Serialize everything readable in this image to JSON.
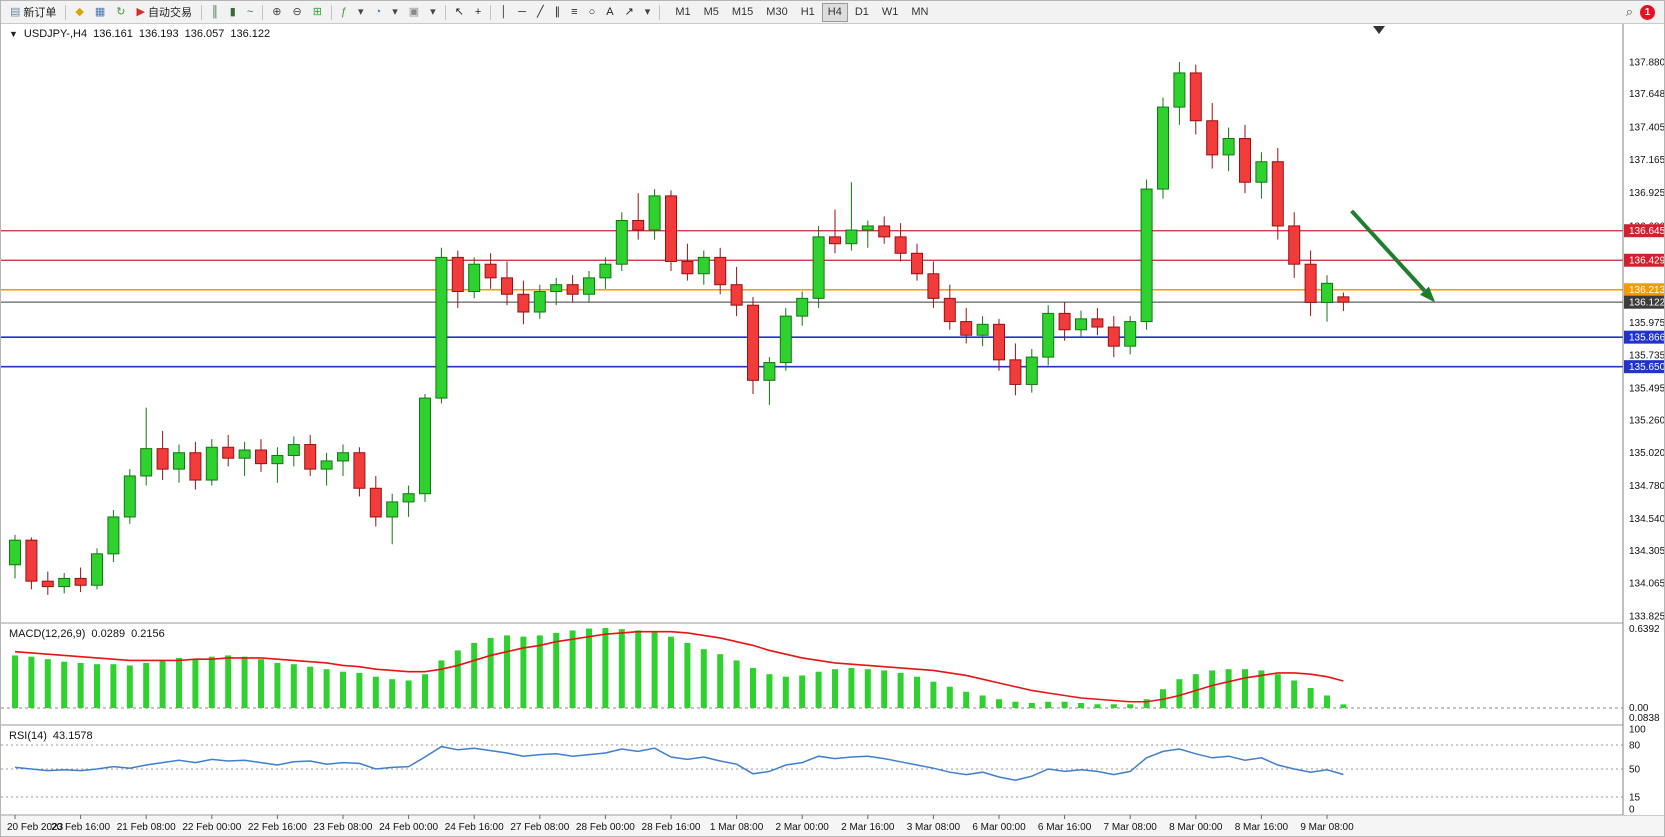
{
  "toolbar": {
    "items": [
      {
        "type": "button",
        "name": "new-order-button",
        "glyph": "▤",
        "glyph_color": "#6a88a8",
        "label": "新订单"
      },
      {
        "type": "sep"
      },
      {
        "type": "icon",
        "name": "charts-icon",
        "glyph": "◆",
        "color": "#d9a300"
      },
      {
        "type": "icon",
        "name": "market-watch-icon",
        "glyph": "▦",
        "color": "#4a78b5"
      },
      {
        "type": "icon",
        "name": "refresh-icon",
        "glyph": "↻",
        "color": "#3a9e3a"
      },
      {
        "type": "button",
        "name": "auto-trading-button",
        "glyph": "▶",
        "glyph_color": "#d03030",
        "label": "自动交易"
      },
      {
        "type": "sep"
      },
      {
        "type": "icon",
        "name": "bar-chart-icon",
        "glyph": "║",
        "color": "#356a35"
      },
      {
        "type": "icon",
        "name": "candlestick-chart-icon",
        "glyph": "▮",
        "color": "#356a35"
      },
      {
        "type": "icon",
        "name": "line-chart-icon",
        "glyph": "~",
        "color": "#356a35"
      },
      {
        "type": "sep"
      },
      {
        "type": "icon",
        "name": "zoom-in-icon",
        "glyph": "⊕",
        "color": "#444444"
      },
      {
        "type": "icon",
        "name": "zoom-out-icon",
        "glyph": "⊖",
        "color": "#444444"
      },
      {
        "type": "icon",
        "name": "tile-windows-icon",
        "glyph": "⊞",
        "color": "#3a9e3a"
      },
      {
        "type": "sep"
      },
      {
        "type": "icon",
        "name": "indicators-icon",
        "glyph": "ƒ",
        "color": "#3a9e3a"
      },
      {
        "type": "icon",
        "name": "indicators-dropdown-icon",
        "glyph": "▾",
        "color": "#444444"
      },
      {
        "type": "icon",
        "name": "period-icon",
        "glyph": "◔",
        "color": "#4a78b5"
      },
      {
        "type": "icon",
        "name": "period-dropdown-icon",
        "glyph": "▾",
        "color": "#444444"
      },
      {
        "type": "icon",
        "name": "template-icon",
        "glyph": "▣",
        "color": "#888888"
      },
      {
        "type": "icon",
        "name": "template-dropdown-icon",
        "glyph": "▾",
        "color": "#444444"
      },
      {
        "type": "sep"
      },
      {
        "type": "icon",
        "name": "cursor-icon",
        "glyph": "↖",
        "color": "#222222"
      },
      {
        "type": "icon",
        "name": "crosshair-icon",
        "glyph": "+",
        "color": "#222222"
      },
      {
        "type": "sep"
      },
      {
        "type": "icon",
        "name": "vertical-line-icon",
        "glyph": "│",
        "color": "#222222"
      },
      {
        "type": "icon",
        "name": "horizontal-line-icon",
        "glyph": "─",
        "color": "#222222"
      },
      {
        "type": "icon",
        "name": "trendline-icon",
        "glyph": "╱",
        "color": "#222222"
      },
      {
        "type": "icon",
        "name": "channel-icon",
        "glyph": "∥",
        "color": "#222222"
      },
      {
        "type": "icon",
        "name": "fibonacci-icon",
        "glyph": "≡",
        "color": "#222222"
      },
      {
        "type": "icon",
        "name": "shapes-icon",
        "glyph": "○",
        "color": "#222222"
      },
      {
        "type": "icon",
        "name": "text-label-icon",
        "glyph": "A",
        "color": "#222222"
      },
      {
        "type": "icon",
        "name": "arrows-tool-icon",
        "glyph": "↗",
        "color": "#222222"
      },
      {
        "type": "icon",
        "name": "arrows-dropdown-icon",
        "glyph": "▾",
        "color": "#444444"
      },
      {
        "type": "sep"
      }
    ],
    "timeframes": [
      "M1",
      "M5",
      "M15",
      "M30",
      "H1",
      "H4",
      "D1",
      "W1",
      "MN"
    ],
    "active_timeframe": "H4",
    "right_items": [
      {
        "type": "icon",
        "name": "search-icon",
        "glyph": "⌕"
      },
      {
        "type": "badge",
        "name": "notification-badge",
        "label": "1",
        "color": "#e81123"
      }
    ]
  },
  "chart": {
    "expander_glyph": "▼",
    "symbol_label": "USDJPY-,H4",
    "open": "136.161",
    "high": "136.193",
    "low": "136.057",
    "close": "136.122"
  },
  "chart_data": {
    "type": "candlestick",
    "symbol": "USDJPY-",
    "timeframe": "H4",
    "colors": {
      "up": "#2fd12f",
      "up_border": "#117711",
      "down": "#f23b3b",
      "down_border": "#991111",
      "macd_hist": "#2fd12f",
      "macd_signal": "#e81313",
      "rsi_line": "#3f7fce",
      "background": "#ffffff"
    },
    "price_axis": {
      "labels": [
        {
          "text": "137.880",
          "value": 137.88
        },
        {
          "text": "137.648",
          "value": 137.648
        },
        {
          "text": "137.405",
          "value": 137.405
        },
        {
          "text": "137.165",
          "value": 137.165
        },
        {
          "text": "136.925",
          "value": 136.925
        },
        {
          "text": "136.680",
          "value": 136.68
        },
        {
          "text": "135.975",
          "value": 135.975
        },
        {
          "text": "135.735",
          "value": 135.735
        },
        {
          "text": "135.495",
          "value": 135.495
        },
        {
          "text": "135.260",
          "value": 135.26
        },
        {
          "text": "135.020",
          "value": 135.02
        },
        {
          "text": "134.780",
          "value": 134.78
        },
        {
          "text": "134.540",
          "value": 134.54
        },
        {
          "text": "134.305",
          "value": 134.305
        },
        {
          "text": "134.065",
          "value": 134.065
        },
        {
          "text": "133.825",
          "value": 133.825
        }
      ]
    },
    "hlines": [
      {
        "name": "resistance-line-1",
        "price": 136.645,
        "color": "#d32030",
        "width": 1.3,
        "label": "136.645"
      },
      {
        "name": "resistance-line-2",
        "price": 136.429,
        "color": "#d32030",
        "width": 1.3,
        "label": "136.429"
      },
      {
        "name": "pivot-line",
        "price": 136.213,
        "color": "#f59b00",
        "width": 1.6,
        "label": "136.213"
      },
      {
        "name": "bid-line",
        "price": 136.122,
        "color": "#3c3c3c",
        "width": 1,
        "label": "136.122"
      },
      {
        "name": "support-line-1",
        "price": 135.866,
        "color": "#2233cc",
        "width": 1.6,
        "label": "135.866"
      },
      {
        "name": "support-line-2",
        "price": 135.65,
        "color": "#2233cc",
        "width": 1.6,
        "label": "135.650"
      }
    ],
    "arrow": {
      "from_bar": 81.5,
      "from_price": 136.79,
      "to_bar": 86.6,
      "to_price": 136.12,
      "color": "#1e7e2e"
    },
    "time_labels": [
      "20 Feb 2023",
      "20 Feb 16:00",
      "21 Feb 08:00",
      "22 Feb 00:00",
      "22 Feb 16:00",
      "23 Feb 08:00",
      "24 Feb 00:00",
      "24 Feb 16:00",
      "27 Feb 08:00",
      "28 Feb 00:00",
      "28 Feb 16:00",
      "1 Mar 08:00",
      "2 Mar 00:00",
      "2 Mar 16:00",
      "3 Mar 08:00",
      "6 Mar 00:00",
      "6 Mar 16:00",
      "7 Mar 08:00",
      "8 Mar 00:00",
      "8 Mar 16:00",
      "9 Mar 08:00"
    ],
    "candles": [
      [
        134.2,
        134.42,
        134.1,
        134.38
      ],
      [
        134.38,
        134.4,
        134.02,
        134.08
      ],
      [
        134.08,
        134.15,
        133.98,
        134.04
      ],
      [
        134.04,
        134.14,
        133.99,
        134.1
      ],
      [
        134.1,
        134.18,
        134.0,
        134.05
      ],
      [
        134.05,
        134.32,
        134.02,
        134.28
      ],
      [
        134.28,
        134.6,
        134.22,
        134.55
      ],
      [
        134.55,
        134.9,
        134.5,
        134.85
      ],
      [
        134.85,
        135.35,
        134.78,
        135.05
      ],
      [
        135.05,
        135.18,
        134.82,
        134.9
      ],
      [
        134.9,
        135.08,
        134.8,
        135.02
      ],
      [
        135.02,
        135.1,
        134.75,
        134.82
      ],
      [
        134.82,
        135.12,
        134.78,
        135.06
      ],
      [
        135.06,
        135.15,
        134.92,
        134.98
      ],
      [
        134.98,
        135.1,
        134.85,
        135.04
      ],
      [
        135.04,
        135.12,
        134.88,
        134.94
      ],
      [
        134.94,
        135.06,
        134.8,
        135.0
      ],
      [
        135.0,
        135.14,
        134.92,
        135.08
      ],
      [
        135.08,
        135.15,
        134.85,
        134.9
      ],
      [
        134.9,
        135.02,
        134.78,
        134.96
      ],
      [
        134.96,
        135.08,
        134.85,
        135.02
      ],
      [
        135.02,
        135.06,
        134.7,
        134.76
      ],
      [
        134.76,
        134.85,
        134.48,
        134.55
      ],
      [
        134.55,
        134.72,
        134.35,
        134.66
      ],
      [
        134.66,
        134.78,
        134.55,
        134.72
      ],
      [
        134.72,
        135.45,
        134.66,
        135.42
      ],
      [
        135.42,
        136.52,
        135.38,
        136.45
      ],
      [
        136.45,
        136.5,
        136.08,
        136.2
      ],
      [
        136.2,
        136.45,
        136.15,
        136.4
      ],
      [
        136.4,
        136.48,
        136.22,
        136.3
      ],
      [
        136.3,
        136.42,
        136.1,
        136.18
      ],
      [
        136.18,
        136.28,
        135.96,
        136.05
      ],
      [
        136.05,
        136.25,
        136.0,
        136.2
      ],
      [
        136.2,
        136.3,
        136.1,
        136.25
      ],
      [
        136.25,
        136.32,
        136.12,
        136.18
      ],
      [
        136.18,
        136.35,
        136.12,
        136.3
      ],
      [
        136.3,
        136.45,
        136.22,
        136.4
      ],
      [
        136.4,
        136.78,
        136.35,
        136.72
      ],
      [
        136.72,
        136.92,
        136.58,
        136.65
      ],
      [
        136.65,
        136.95,
        136.58,
        136.9
      ],
      [
        136.9,
        136.94,
        136.35,
        136.42
      ],
      [
        136.42,
        136.55,
        136.28,
        136.33
      ],
      [
        136.33,
        136.5,
        136.25,
        136.45
      ],
      [
        136.45,
        136.52,
        136.18,
        136.25
      ],
      [
        136.25,
        136.38,
        136.02,
        136.1
      ],
      [
        136.1,
        136.16,
        135.45,
        135.55
      ],
      [
        135.55,
        135.72,
        135.37,
        135.68
      ],
      [
        135.68,
        136.08,
        135.62,
        136.02
      ],
      [
        136.02,
        136.2,
        135.95,
        136.15
      ],
      [
        136.15,
        136.68,
        136.08,
        136.6
      ],
      [
        136.6,
        136.8,
        136.48,
        136.55
      ],
      [
        136.55,
        137.0,
        136.5,
        136.65
      ],
      [
        136.65,
        136.72,
        136.52,
        136.68
      ],
      [
        136.68,
        136.75,
        136.55,
        136.6
      ],
      [
        136.6,
        136.7,
        136.42,
        136.48
      ],
      [
        136.48,
        136.55,
        136.28,
        136.33
      ],
      [
        136.33,
        136.42,
        136.08,
        136.15
      ],
      [
        136.15,
        136.25,
        135.92,
        135.98
      ],
      [
        135.98,
        136.08,
        135.82,
        135.88
      ],
      [
        135.88,
        136.02,
        135.8,
        135.96
      ],
      [
        135.96,
        136.0,
        135.62,
        135.7
      ],
      [
        135.7,
        135.82,
        135.44,
        135.52
      ],
      [
        135.52,
        135.78,
        135.46,
        135.72
      ],
      [
        135.72,
        136.1,
        135.66,
        136.04
      ],
      [
        136.04,
        136.12,
        135.84,
        135.92
      ],
      [
        135.92,
        136.06,
        135.86,
        136.0
      ],
      [
        136.0,
        136.08,
        135.88,
        135.94
      ],
      [
        135.94,
        136.02,
        135.72,
        135.8
      ],
      [
        135.8,
        136.02,
        135.74,
        135.98
      ],
      [
        135.98,
        137.02,
        135.92,
        136.95
      ],
      [
        136.95,
        137.62,
        136.88,
        137.55
      ],
      [
        137.55,
        137.88,
        137.42,
        137.8
      ],
      [
        137.8,
        137.86,
        137.35,
        137.45
      ],
      [
        137.45,
        137.58,
        137.1,
        137.2
      ],
      [
        137.2,
        137.4,
        137.08,
        137.32
      ],
      [
        137.32,
        137.42,
        136.92,
        137.0
      ],
      [
        137.0,
        137.22,
        136.88,
        137.15
      ],
      [
        137.15,
        137.25,
        136.58,
        136.68
      ],
      [
        136.68,
        136.78,
        136.3,
        136.4
      ],
      [
        136.4,
        136.5,
        136.02,
        136.12
      ],
      [
        136.12,
        136.32,
        135.98,
        136.26
      ],
      [
        136.161,
        136.193,
        136.057,
        136.122
      ]
    ],
    "macd": {
      "label": "MACD(12,26,9)",
      "value_main": "0.0289",
      "value_signal": "0.2156",
      "scale_max": 0.6392,
      "scale_labels": {
        "top": "0.6392",
        "zero": "0.00",
        "min": "0.0838"
      },
      "histogram": [
        0.42,
        0.41,
        0.39,
        0.37,
        0.36,
        0.35,
        0.35,
        0.34,
        0.36,
        0.38,
        0.4,
        0.39,
        0.41,
        0.42,
        0.41,
        0.39,
        0.36,
        0.35,
        0.33,
        0.31,
        0.29,
        0.28,
        0.25,
        0.23,
        0.22,
        0.27,
        0.38,
        0.46,
        0.52,
        0.56,
        0.58,
        0.57,
        0.58,
        0.6,
        0.62,
        0.635,
        0.639,
        0.63,
        0.62,
        0.61,
        0.57,
        0.52,
        0.47,
        0.43,
        0.38,
        0.32,
        0.27,
        0.25,
        0.26,
        0.29,
        0.31,
        0.32,
        0.31,
        0.3,
        0.28,
        0.25,
        0.21,
        0.17,
        0.13,
        0.1,
        0.07,
        0.05,
        0.04,
        0.05,
        0.05,
        0.04,
        0.03,
        0.03,
        0.03,
        0.07,
        0.15,
        0.23,
        0.27,
        0.3,
        0.31,
        0.31,
        0.3,
        0.27,
        0.22,
        0.16,
        0.1,
        0.029
      ],
      "signal": [
        0.45,
        0.44,
        0.43,
        0.42,
        0.41,
        0.4,
        0.39,
        0.38,
        0.38,
        0.38,
        0.38,
        0.39,
        0.39,
        0.4,
        0.4,
        0.4,
        0.39,
        0.38,
        0.37,
        0.36,
        0.34,
        0.33,
        0.31,
        0.3,
        0.29,
        0.29,
        0.31,
        0.34,
        0.38,
        0.42,
        0.45,
        0.48,
        0.5,
        0.53,
        0.55,
        0.57,
        0.59,
        0.6,
        0.61,
        0.61,
        0.61,
        0.6,
        0.58,
        0.56,
        0.53,
        0.5,
        0.46,
        0.43,
        0.4,
        0.38,
        0.36,
        0.35,
        0.34,
        0.33,
        0.32,
        0.31,
        0.3,
        0.28,
        0.26,
        0.23,
        0.2,
        0.17,
        0.14,
        0.12,
        0.1,
        0.08,
        0.07,
        0.06,
        0.05,
        0.05,
        0.07,
        0.1,
        0.14,
        0.18,
        0.21,
        0.24,
        0.26,
        0.28,
        0.28,
        0.27,
        0.25,
        0.2156
      ]
    },
    "rsi": {
      "label": "RSI(14)",
      "value": "43.1578",
      "levels": [
        80,
        50,
        15
      ],
      "scale_labels": [
        {
          "text": "100",
          "value": 100
        },
        {
          "text": "80",
          "value": 80
        },
        {
          "text": "50",
          "value": 50
        },
        {
          "text": "15",
          "value": 15
        },
        {
          "text": "0",
          "value": 0
        }
      ],
      "values": [
        52,
        50,
        48,
        49,
        48,
        50,
        53,
        51,
        55,
        58,
        61,
        58,
        62,
        60,
        61,
        58,
        55,
        59,
        60,
        56,
        58,
        57,
        50,
        52,
        53,
        65,
        78,
        74,
        76,
        73,
        70,
        66,
        68,
        69,
        66,
        68,
        70,
        75,
        72,
        76,
        65,
        62,
        65,
        60,
        56,
        44,
        47,
        55,
        58,
        66,
        63,
        65,
        66,
        63,
        59,
        55,
        51,
        46,
        43,
        46,
        40,
        36,
        41,
        50,
        47,
        49,
        47,
        43,
        47,
        64,
        72,
        75,
        69,
        64,
        66,
        61,
        64,
        55,
        50,
        46,
        49,
        43.16
      ]
    }
  }
}
